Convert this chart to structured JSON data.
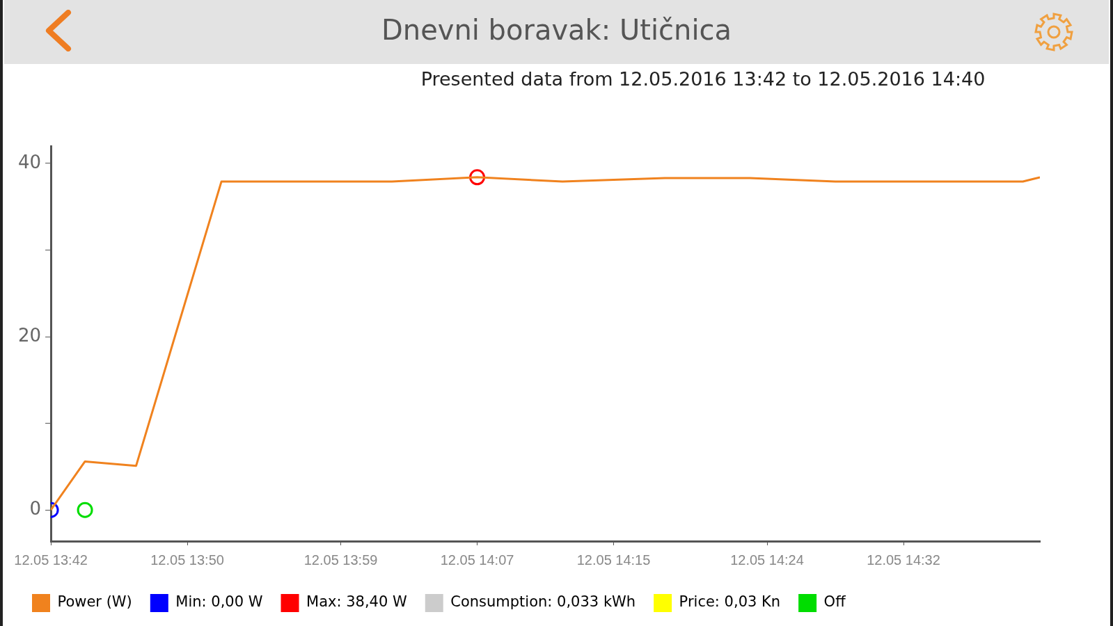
{
  "chart_data": {
    "type": "line",
    "title": "Dnevni boravak: Utičnica",
    "subtitle": "Presented data from 12.05.2016 13:42 to 12.05.2016 14:40",
    "xlim": [
      "2016-05-12T13:42",
      "2016-05-12T14:40"
    ],
    "xticks": [
      {
        "value": "2016-05-12T13:42",
        "label": "12.05 13:42"
      },
      {
        "value": "2016-05-12T13:50",
        "label": "12.05 13:50"
      },
      {
        "value": "2016-05-12T13:59",
        "label": "12.05 13:59"
      },
      {
        "value": "2016-05-12T14:07",
        "label": "12.05 14:07"
      },
      {
        "value": "2016-05-12T14:15",
        "label": "12.05 14:15"
      },
      {
        "value": "2016-05-12T14:24",
        "label": "12.05 14:24"
      },
      {
        "value": "2016-05-12T14:32",
        "label": "12.05 14:32"
      }
    ],
    "ylim": [
      -3.6,
      42
    ],
    "yticks": [
      0,
      {
        "value": 10,
        "label": null
      },
      20,
      {
        "value": 30,
        "label": null
      },
      40
    ],
    "grid": false,
    "legend": "bottom",
    "line_style": "solid",
    "series": [
      {
        "name": "Power (W)",
        "marker": "none",
        "color": "#f0821e",
        "x": [
          "2016-05-12T13:42",
          "2016-05-12T13:44",
          "2016-05-12T13:47",
          "2016-05-12T13:52",
          "2016-05-12T14:02",
          "2016-05-12T14:07",
          "2016-05-12T14:12",
          "2016-05-12T14:18",
          "2016-05-12T14:23",
          "2016-05-12T14:28",
          "2016-05-12T14:39",
          "2016-05-12T14:40"
        ],
        "values": [
          0,
          5.6,
          5.1,
          37.9,
          37.9,
          38.4,
          37.9,
          38.3,
          38.3,
          37.9,
          37.9,
          38.4
        ]
      },
      {
        "name": "Min: 0,00 W",
        "type": "scatter",
        "marker": "circle",
        "color": "#0000ff",
        "x": [
          "2016-05-12T13:42"
        ],
        "values": [
          0
        ]
      },
      {
        "name": "Max: 38,40 W",
        "type": "scatter",
        "marker": "circle",
        "color": "#ff0000",
        "x": [
          "2016-05-12T14:07"
        ],
        "values": [
          38.4
        ]
      },
      {
        "name": "Consumption: 0,033 kWh",
        "type": "scatter",
        "marker": "circle",
        "color": "#cccccc"
      },
      {
        "name": "Price: 0,03 Kn",
        "type": "scatter",
        "marker": "circle",
        "color": "#ffff00"
      },
      {
        "name": "Off",
        "type": "scatter",
        "marker": "circle",
        "color": "#00dd00",
        "x": [
          "2016-05-12T13:44"
        ],
        "values": [
          0
        ]
      }
    ]
  }
}
